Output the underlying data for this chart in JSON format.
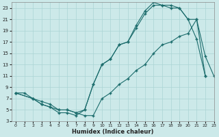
{
  "xlabel": "Humidex (Indice chaleur)",
  "bg_color": "#cce9e9",
  "grid_color": "#aad4d4",
  "line_color": "#1a6b6b",
  "xlim": [
    -0.5,
    23
  ],
  "ylim": [
    3,
    24
  ],
  "xticks": [
    0,
    1,
    2,
    3,
    4,
    5,
    6,
    7,
    8,
    9,
    10,
    11,
    12,
    13,
    14,
    15,
    16,
    17,
    18,
    19,
    20,
    21,
    22,
    23
  ],
  "yticks": [
    3,
    5,
    7,
    9,
    11,
    13,
    15,
    17,
    19,
    21,
    23
  ],
  "line1_x": [
    0,
    1,
    2,
    3,
    4,
    5,
    6,
    7,
    8,
    9,
    10,
    11,
    12,
    13,
    14,
    15,
    16,
    17,
    18,
    19,
    20,
    21,
    22
  ],
  "line1_y": [
    8,
    8,
    7,
    6,
    5.5,
    4.5,
    4.5,
    4,
    5,
    9.5,
    13,
    14,
    16.5,
    17,
    19.5,
    22,
    23.5,
    23.5,
    23.5,
    23,
    21,
    17.5,
    11
  ],
  "line2_x": [
    0,
    2,
    3,
    4,
    5,
    6,
    7,
    8,
    9,
    10,
    11,
    12,
    13,
    14,
    15,
    16,
    17,
    18,
    19,
    20,
    21,
    22
  ],
  "line2_y": [
    8,
    7,
    6,
    5.5,
    5,
    5,
    4.5,
    5,
    9.5,
    13,
    14,
    16.5,
    17,
    20,
    22.5,
    24,
    23.5,
    23,
    23,
    21,
    21,
    11
  ],
  "line3_x": [
    0,
    2,
    3,
    4,
    5,
    6,
    7,
    8,
    9,
    10,
    11,
    12,
    13,
    14,
    15,
    16,
    17,
    18,
    19,
    20,
    21,
    22,
    23
  ],
  "line3_y": [
    8,
    7,
    6.5,
    6,
    5,
    5,
    4.5,
    4,
    4,
    7,
    8,
    9.5,
    10.5,
    12,
    13,
    15,
    16.5,
    17,
    18,
    18.5,
    21,
    14.5,
    11
  ]
}
